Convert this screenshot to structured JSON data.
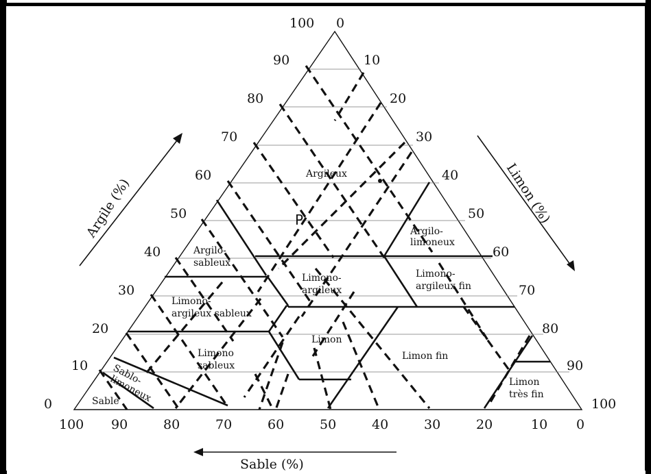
{
  "diagram": {
    "point_label": "P",
    "axes": {
      "clay": {
        "title": "Argile (%)",
        "ticks": [
          "100",
          "90",
          "80",
          "70",
          "60",
          "50",
          "40",
          "30",
          "20",
          "10",
          "0"
        ]
      },
      "silt": {
        "title": "Limon (%)",
        "ticks": [
          "0",
          "10",
          "20",
          "30",
          "40",
          "50",
          "60",
          "70",
          "80",
          "90",
          "100"
        ]
      },
      "sand": {
        "title": "Sable (%)",
        "ticks": [
          "100",
          "90",
          "80",
          "70",
          "60",
          "50",
          "40",
          "30",
          "20",
          "10",
          "0"
        ]
      }
    },
    "regions": [
      {
        "lines": [
          "Argileux"
        ]
      },
      {
        "lines": [
          "Argilo-",
          "limoneux"
        ]
      },
      {
        "lines": [
          "Argilo-",
          "sableux"
        ]
      },
      {
        "lines": [
          "Limono-",
          "argileux"
        ]
      },
      {
        "lines": [
          "Limono-",
          "argileux fin"
        ]
      },
      {
        "lines": [
          "Limono-",
          "argileux sableux"
        ]
      },
      {
        "lines": [
          "Limon"
        ]
      },
      {
        "lines": [
          "Limono",
          "sableux"
        ]
      },
      {
        "lines": [
          "Limon fin"
        ]
      },
      {
        "lines": [
          "Limon",
          "très fin"
        ]
      },
      {
        "lines": [
          "Sablo-",
          "limoneux"
        ]
      },
      {
        "lines": [
          "Sable"
        ]
      }
    ]
  }
}
